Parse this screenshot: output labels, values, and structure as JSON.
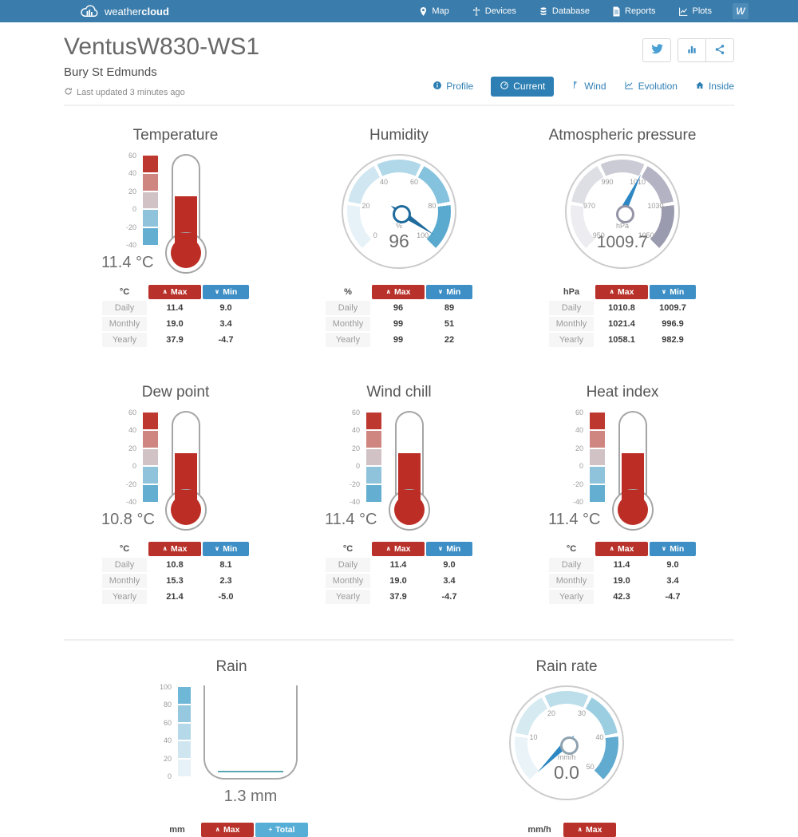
{
  "nav": {
    "brand_light": "weather",
    "brand_bold": "cloud",
    "items": [
      "Map",
      "Devices",
      "Database",
      "Reports",
      "Plots"
    ],
    "avatar_text": "W"
  },
  "header": {
    "title": "VentusW830-WS1",
    "location": "Bury St Edmunds",
    "last_updated": "Last updated 3 minutes ago"
  },
  "tabs": {
    "profile": "Profile",
    "current": "Current",
    "wind": "Wind",
    "evolution": "Evolution",
    "inside": "Inside"
  },
  "table_labels": {
    "max": "Max",
    "min": "Min",
    "total": "Total"
  },
  "colors": {
    "nav_bg": "#3a7cab",
    "link_blue": "#2e7fb4",
    "max_red": "#b8312a",
    "min_blue": "#3e8fc5",
    "total_blue": "#56aed6",
    "thermo_red": "#bc2e25"
  },
  "widgets": {
    "temperature": {
      "title": "Temperature",
      "display": "11.4 °C",
      "scale": [
        "60",
        "40",
        "20",
        "0",
        "-20",
        "-40"
      ],
      "fill_pct": 51.4,
      "table": {
        "unit": "°C",
        "rows": [
          [
            "Daily",
            "11.4",
            "9.0"
          ],
          [
            "Monthly",
            "19.0",
            "3.4"
          ],
          [
            "Yearly",
            "37.9",
            "-4.7"
          ]
        ]
      }
    },
    "humidity": {
      "title": "Humidity",
      "value": "96",
      "unit": "%",
      "ticks": [
        "0",
        "20",
        "40",
        "60",
        "80",
        "100"
      ],
      "needle_deg": 124,
      "table": {
        "unit": "%",
        "rows": [
          [
            "Daily",
            "96",
            "89"
          ],
          [
            "Monthly",
            "99",
            "51"
          ],
          [
            "Yearly",
            "99",
            "22"
          ]
        ]
      }
    },
    "pressure": {
      "title": "Atmospheric pressure",
      "value": "1009.7",
      "unit": "hPa",
      "ticks": [
        "950",
        "970",
        "990",
        "1010",
        "1030",
        "1050"
      ],
      "needle_deg": 26,
      "table": {
        "unit": "hPa",
        "rows": [
          [
            "Daily",
            "1010.8",
            "1009.7"
          ],
          [
            "Monthly",
            "1021.4",
            "996.9"
          ],
          [
            "Yearly",
            "1058.1",
            "982.9"
          ]
        ]
      }
    },
    "dew_point": {
      "title": "Dew point",
      "display": "10.8 °C",
      "scale": [
        "60",
        "40",
        "20",
        "0",
        "-20",
        "-40"
      ],
      "fill_pct": 50.8,
      "table": {
        "unit": "°C",
        "rows": [
          [
            "Daily",
            "10.8",
            "8.1"
          ],
          [
            "Monthly",
            "15.3",
            "2.3"
          ],
          [
            "Yearly",
            "21.4",
            "-5.0"
          ]
        ]
      }
    },
    "wind_chill": {
      "title": "Wind chill",
      "display": "11.4 °C",
      "scale": [
        "60",
        "40",
        "20",
        "0",
        "-20",
        "-40"
      ],
      "fill_pct": 51.4,
      "table": {
        "unit": "°C",
        "rows": [
          [
            "Daily",
            "11.4",
            "9.0"
          ],
          [
            "Monthly",
            "19.0",
            "3.4"
          ],
          [
            "Yearly",
            "37.9",
            "-4.7"
          ]
        ]
      }
    },
    "heat_index": {
      "title": "Heat index",
      "display": "11.4 °C",
      "scale": [
        "60",
        "40",
        "20",
        "0",
        "-20",
        "-40"
      ],
      "fill_pct": 51.4,
      "table": {
        "unit": "°C",
        "rows": [
          [
            "Daily",
            "11.4",
            "9.0"
          ],
          [
            "Monthly",
            "19.0",
            "3.4"
          ],
          [
            "Yearly",
            "42.3",
            "-4.7"
          ]
        ]
      }
    },
    "rain": {
      "title": "Rain",
      "display": "1.3 mm",
      "scale": [
        "100",
        "80",
        "60",
        "40",
        "20",
        "0"
      ],
      "table": {
        "unit": "mm"
      }
    },
    "rain_rate": {
      "title": "Rain rate",
      "value": "0.0",
      "unit": "mm/h",
      "ticks": [
        "10",
        "20",
        "30",
        "40",
        "50"
      ],
      "needle_deg": -135,
      "table": {
        "unit": "mm/h"
      }
    }
  }
}
